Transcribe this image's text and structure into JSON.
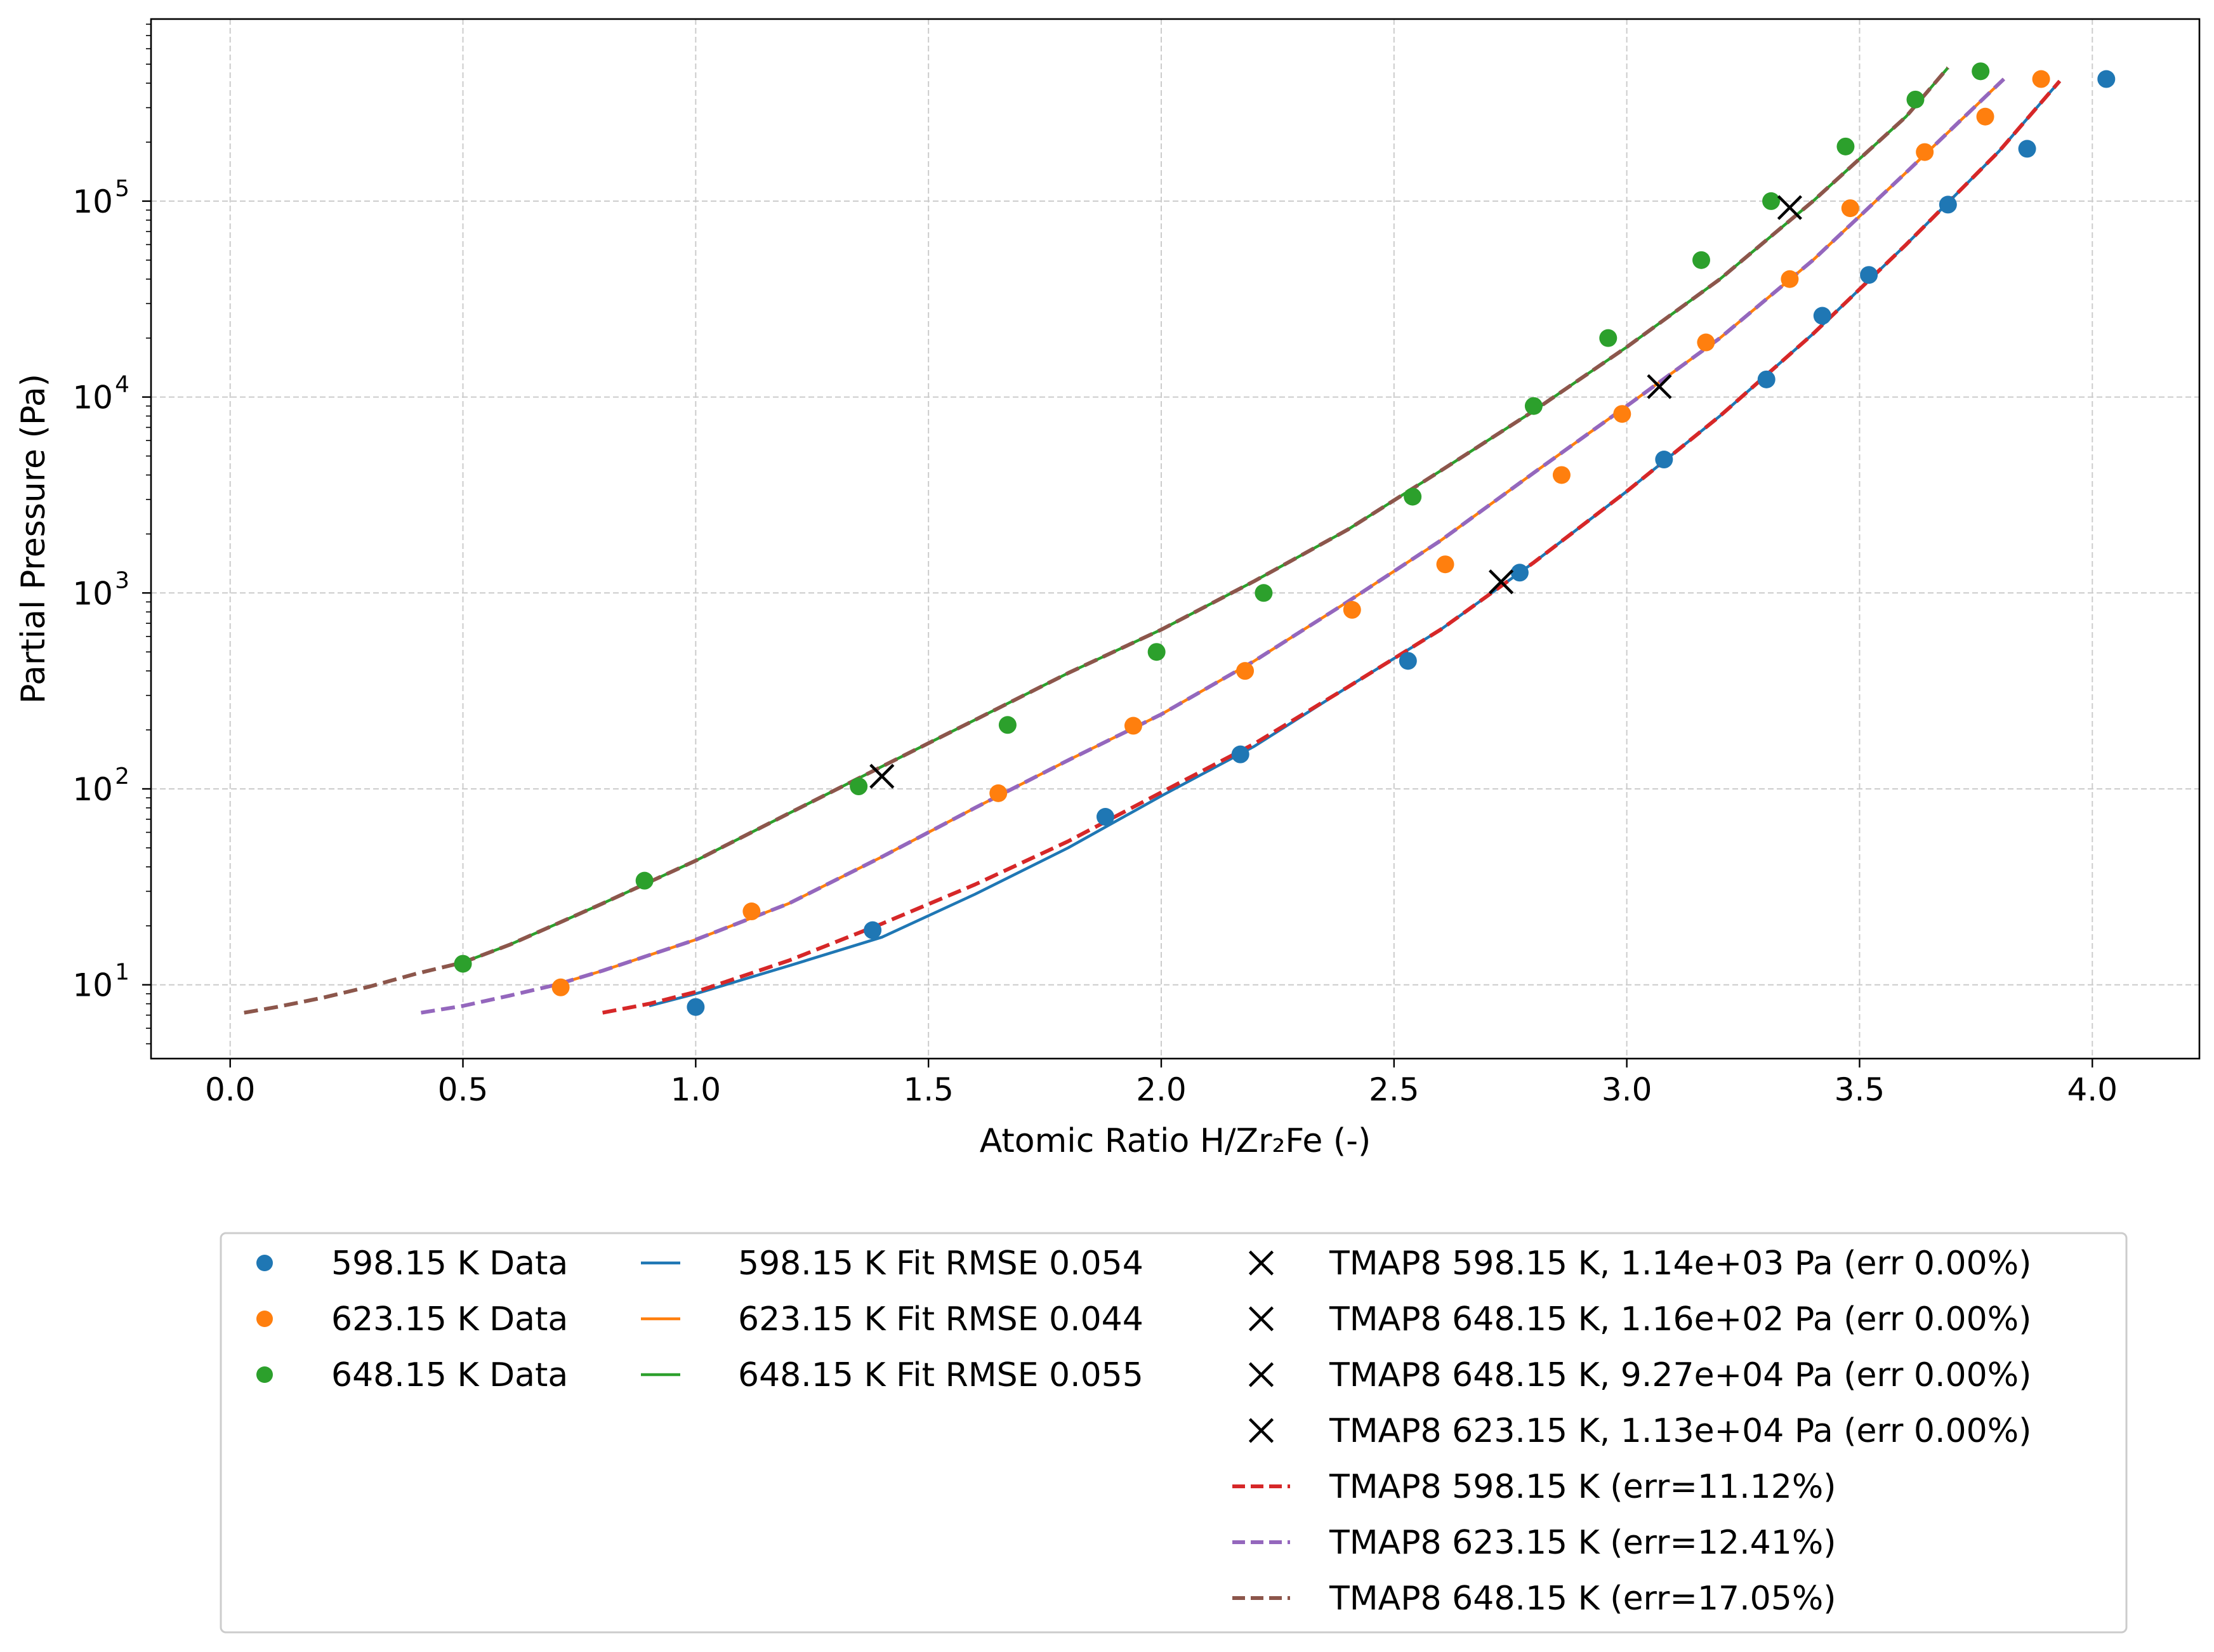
{
  "chart_data": {
    "type": "scatter",
    "xlabel": "Atomic Ratio H/Zr₂Fe (-)",
    "ylabel": "Partial Pressure (Pa)",
    "xlim": [
      -0.17,
      4.23
    ],
    "ylim": [
      4.2,
      850000
    ],
    "yscale": "log",
    "grid": true,
    "x_ticks": [
      0.0,
      0.5,
      1.0,
      1.5,
      2.0,
      2.5,
      3.0,
      3.5,
      4.0
    ],
    "x_tick_labels": [
      "0.0",
      "0.5",
      "1.0",
      "1.5",
      "2.0",
      "2.5",
      "3.0",
      "3.5",
      "4.0"
    ],
    "y_ticks": [
      10,
      100,
      1000,
      10000,
      100000
    ],
    "y_tick_labels": [
      {
        "base": "10",
        "exp": "1"
      },
      {
        "base": "10",
        "exp": "2"
      },
      {
        "base": "10",
        "exp": "3"
      },
      {
        "base": "10",
        "exp": "4"
      },
      {
        "base": "10",
        "exp": "5"
      }
    ],
    "legend_position": "below the plot",
    "series": [
      {
        "name": "598.15 K Data",
        "kind": "scatter",
        "color": "#1f77b4",
        "x": [
          1.0,
          1.38,
          1.88,
          2.17,
          2.53,
          2.77,
          3.08,
          3.3,
          3.42,
          3.52,
          3.69,
          3.86,
          4.03
        ],
        "y": [
          7.7,
          19,
          72,
          150,
          450,
          1270,
          4800,
          12300,
          26000,
          42000,
          96000,
          185000,
          420000
        ]
      },
      {
        "name": "623.15 K Data",
        "kind": "scatter",
        "color": "#ff7f0e",
        "x": [
          0.71,
          1.12,
          1.65,
          1.94,
          2.18,
          2.41,
          2.61,
          2.86,
          2.99,
          3.17,
          3.35,
          3.48,
          3.64,
          3.77,
          3.89
        ],
        "y": [
          9.7,
          23.7,
          95,
          210,
          400,
          820,
          1400,
          4000,
          8200,
          19000,
          40000,
          92000,
          178000,
          270000,
          420000
        ]
      },
      {
        "name": "648.15 K Data",
        "kind": "scatter",
        "color": "#2ca02c",
        "x": [
          0.5,
          0.89,
          1.35,
          1.67,
          1.99,
          2.22,
          2.54,
          2.8,
          2.96,
          3.16,
          3.31,
          3.47,
          3.62,
          3.76
        ],
        "y": [
          12.8,
          34,
          103,
          212,
          500,
          1000,
          3100,
          9000,
          20000,
          50000,
          100000,
          190000,
          330000,
          460000
        ]
      },
      {
        "name": "598.15 K Fit RMSE 0.054",
        "kind": "line",
        "color": "#1f77b4",
        "style": "solid",
        "x": [
          0.9,
          1.0,
          1.2,
          1.4,
          1.6,
          1.8,
          2.0,
          2.2,
          2.4,
          2.6,
          2.8,
          3.0,
          3.2,
          3.4,
          3.6,
          3.8,
          3.93
        ],
        "y": [
          7.8,
          9,
          12.5,
          17.5,
          29,
          50,
          92,
          165,
          330,
          650,
          1430,
          3300,
          8000,
          21000,
          60000,
          180000,
          410000
        ]
      },
      {
        "name": "623.15 K Fit RMSE 0.044",
        "kind": "line",
        "color": "#ff7f0e",
        "style": "solid",
        "x": [
          0.7,
          0.8,
          1.0,
          1.2,
          1.4,
          1.6,
          1.8,
          2.0,
          2.2,
          2.4,
          2.6,
          2.8,
          3.0,
          3.2,
          3.4,
          3.6,
          3.81
        ],
        "y": [
          10,
          11.8,
          17,
          26,
          45,
          80,
          140,
          240,
          450,
          900,
          1850,
          4100,
          9000,
          20000,
          50000,
          140000,
          420000
        ]
      },
      {
        "name": "648.15 K Fit RMSE 0.055",
        "kind": "line",
        "color": "#2ca02c",
        "style": "solid",
        "x": [
          0.5,
          0.6,
          0.8,
          1.0,
          1.2,
          1.4,
          1.6,
          1.8,
          2.0,
          2.2,
          2.4,
          2.6,
          2.8,
          3.0,
          3.2,
          3.4,
          3.6,
          3.69
        ],
        "y": [
          13,
          16,
          26,
          43,
          75,
          130,
          225,
          390,
          650,
          1150,
          2100,
          4200,
          8500,
          18000,
          40000,
          100000,
          270000,
          480000
        ]
      },
      {
        "name": "TMAP8 598.15 K (err=11.12%)",
        "kind": "line",
        "color": "#d62728",
        "style": "dashed",
        "x": [
          0.8,
          0.9,
          1.0,
          1.2,
          1.4,
          1.6,
          1.8,
          2.0,
          2.2,
          2.4,
          2.6,
          2.8,
          3.0,
          3.2,
          3.4,
          3.6,
          3.8,
          3.93
        ],
        "y": [
          7.2,
          8,
          9.2,
          13.3,
          20.5,
          32.5,
          54,
          96,
          170,
          330,
          650,
          1430,
          3300,
          8000,
          21000,
          60000,
          180000,
          410000
        ]
      },
      {
        "name": "TMAP8 623.15 K (err=12.41%)",
        "kind": "line",
        "color": "#9467bd",
        "style": "dashed",
        "x": [
          0.41,
          0.5,
          0.6,
          0.7,
          0.8,
          1.0,
          1.2,
          1.4,
          1.6,
          1.8,
          2.0,
          2.2,
          2.4,
          2.6,
          2.8,
          3.0,
          3.2,
          3.4,
          3.6,
          3.81
        ],
        "y": [
          7.2,
          7.8,
          8.8,
          10,
          11.8,
          17,
          26,
          45,
          80,
          140,
          240,
          450,
          900,
          1850,
          4100,
          9000,
          20000,
          50000,
          140000,
          420000
        ]
      },
      {
        "name": "TMAP8 648.15 K (err=17.05%)",
        "kind": "line",
        "color": "#8c564b",
        "style": "dashed",
        "x": [
          0.03,
          0.1,
          0.2,
          0.3,
          0.4,
          0.5,
          0.6,
          0.8,
          1.0,
          1.2,
          1.4,
          1.6,
          1.8,
          2.0,
          2.2,
          2.4,
          2.6,
          2.8,
          3.0,
          3.2,
          3.4,
          3.6,
          3.69
        ],
        "y": [
          7.2,
          7.7,
          8.6,
          9.8,
          11.4,
          13,
          16,
          26,
          43,
          75,
          130,
          225,
          390,
          650,
          1150,
          2100,
          4200,
          8500,
          18000,
          40000,
          100000,
          270000,
          480000
        ]
      },
      {
        "name": "TMAP8 598.15 K, 1.14e+03 Pa (err 0.00%)",
        "kind": "marker_x",
        "color": "#000000",
        "x": [
          2.73
        ],
        "y": [
          1140
        ]
      },
      {
        "name": "TMAP8 648.15 K, 1.16e+02 Pa (err 0.00%)",
        "kind": "marker_x",
        "color": "#000000",
        "x": [
          1.4
        ],
        "y": [
          116
        ]
      },
      {
        "name": "TMAP8 648.15 K, 9.27e+04 Pa (err 0.00%)",
        "kind": "marker_x",
        "color": "#000000",
        "x": [
          3.35
        ],
        "y": [
          92700
        ]
      },
      {
        "name": "TMAP8 623.15 K, 1.13e+04 Pa (err 0.00%)",
        "kind": "marker_x",
        "color": "#000000",
        "x": [
          3.07
        ],
        "y": [
          11300
        ]
      }
    ],
    "legend": {
      "columns": [
        [
          {
            "label": "598.15 K Data",
            "marker": "dot",
            "color": "#1f77b4"
          },
          {
            "label": "623.15 K Data",
            "marker": "dot",
            "color": "#ff7f0e"
          },
          {
            "label": "648.15 K Data",
            "marker": "dot",
            "color": "#2ca02c"
          }
        ],
        [
          {
            "label": "598.15 K Fit RMSE 0.054",
            "marker": "solid",
            "color": "#1f77b4"
          },
          {
            "label": "623.15 K Fit RMSE 0.044",
            "marker": "solid",
            "color": "#ff7f0e"
          },
          {
            "label": "648.15 K Fit RMSE 0.055",
            "marker": "solid",
            "color": "#2ca02c"
          }
        ],
        [
          {
            "label": "TMAP8 598.15 K, 1.14e+03 Pa (err 0.00%)",
            "marker": "x",
            "color": "#000000"
          },
          {
            "label": "TMAP8 648.15 K, 1.16e+02 Pa (err 0.00%)",
            "marker": "x",
            "color": "#000000"
          },
          {
            "label": "TMAP8 648.15 K, 9.27e+04 Pa (err 0.00%)",
            "marker": "x",
            "color": "#000000"
          },
          {
            "label": "TMAP8 623.15 K, 1.13e+04 Pa (err 0.00%)",
            "marker": "x",
            "color": "#000000"
          },
          {
            "label": "TMAP8 598.15 K (err=11.12%)",
            "marker": "dashed",
            "color": "#d62728"
          },
          {
            "label": "TMAP8 623.15 K (err=12.41%)",
            "marker": "dashed",
            "color": "#9467bd"
          },
          {
            "label": "TMAP8 648.15 K (err=17.05%)",
            "marker": "dashed",
            "color": "#8c564b"
          }
        ]
      ]
    }
  }
}
